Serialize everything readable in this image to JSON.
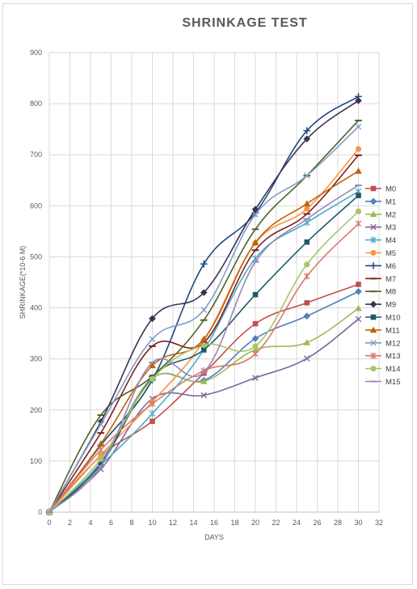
{
  "chart_data": {
    "type": "line",
    "title": "SHRINKAGE TEST",
    "xlabel": "DAYS",
    "ylabel": "SHRINKAGE(*10-6 M)",
    "xlim": [
      0,
      32
    ],
    "ylim": [
      0,
      900
    ],
    "x_ticks": [
      "0",
      "2",
      "4",
      "6",
      "8",
      "10",
      "12",
      "14",
      "16",
      "18",
      "20",
      "22",
      "24",
      "26",
      "28",
      "30",
      "32"
    ],
    "y_ticks": [
      "0",
      "100",
      "200",
      "300",
      "400",
      "500",
      "600",
      "700",
      "800",
      "900"
    ],
    "grid": true,
    "legend_position": "right",
    "x": [
      0,
      5,
      10,
      15,
      20,
      25,
      30
    ],
    "series": [
      {
        "name": "M0",
        "color": "#c0504d",
        "marker": "square",
        "values": [
          0,
          110,
          178,
          272,
          369,
          410,
          446
        ]
      },
      {
        "name": "M1",
        "color": "#4f81bd",
        "marker": "diamond",
        "values": [
          0,
          98,
          262,
          258,
          340,
          384,
          432
        ]
      },
      {
        "name": "M2",
        "color": "#9bbb59",
        "marker": "triangle",
        "values": [
          0,
          92,
          262,
          256,
          318,
          332,
          399
        ]
      },
      {
        "name": "M3",
        "color": "#8064a2",
        "marker": "x",
        "values": [
          0,
          84,
          222,
          229,
          263,
          301,
          378
        ]
      },
      {
        "name": "M4",
        "color": "#4bacc6",
        "marker": "star",
        "values": [
          0,
          92,
          193,
          318,
          497,
          567,
          628
        ]
      },
      {
        "name": "M5",
        "color": "#f79646",
        "marker": "circle",
        "values": [
          0,
          112,
          216,
          336,
          527,
          594,
          711
        ]
      },
      {
        "name": "M6",
        "color": "#1f497d",
        "marker": "plus",
        "values": [
          0,
          131,
          259,
          486,
          586,
          747,
          814
        ]
      },
      {
        "name": "M7",
        "color": "#7f1f1f",
        "marker": "dash",
        "values": [
          0,
          155,
          325,
          332,
          513,
          584,
          699
        ]
      },
      {
        "name": "M8",
        "color": "#4f6228",
        "marker": "dash",
        "values": [
          0,
          190,
          266,
          376,
          554,
          659,
          767
        ]
      },
      {
        "name": "M9",
        "color": "#3f3151",
        "marker": "diamond",
        "values": [
          0,
          177,
          379,
          430,
          593,
          731,
          806
        ]
      },
      {
        "name": "M10",
        "color": "#215967",
        "marker": "square",
        "values": [
          0,
          94,
          264,
          318,
          426,
          529,
          620
        ]
      },
      {
        "name": "M11",
        "color": "#c0620c",
        "marker": "triangle",
        "values": [
          0,
          134,
          287,
          339,
          528,
          604,
          668
        ]
      },
      {
        "name": "M12",
        "color": "#7e9ec9",
        "marker": "x",
        "values": [
          0,
          172,
          339,
          396,
          583,
          659,
          755
        ]
      },
      {
        "name": "M13",
        "color": "#d9776c",
        "marker": "star",
        "values": [
          0,
          122,
          212,
          277,
          310,
          462,
          565
        ]
      },
      {
        "name": "M14",
        "color": "#a9c46a",
        "marker": "circle",
        "values": [
          0,
          104,
          261,
          327,
          325,
          485,
          589
        ]
      },
      {
        "name": "M15",
        "color": "#9a86b4",
        "marker": "dash",
        "values": [
          0,
          90,
          293,
          274,
          490,
          574,
          640
        ]
      }
    ]
  }
}
